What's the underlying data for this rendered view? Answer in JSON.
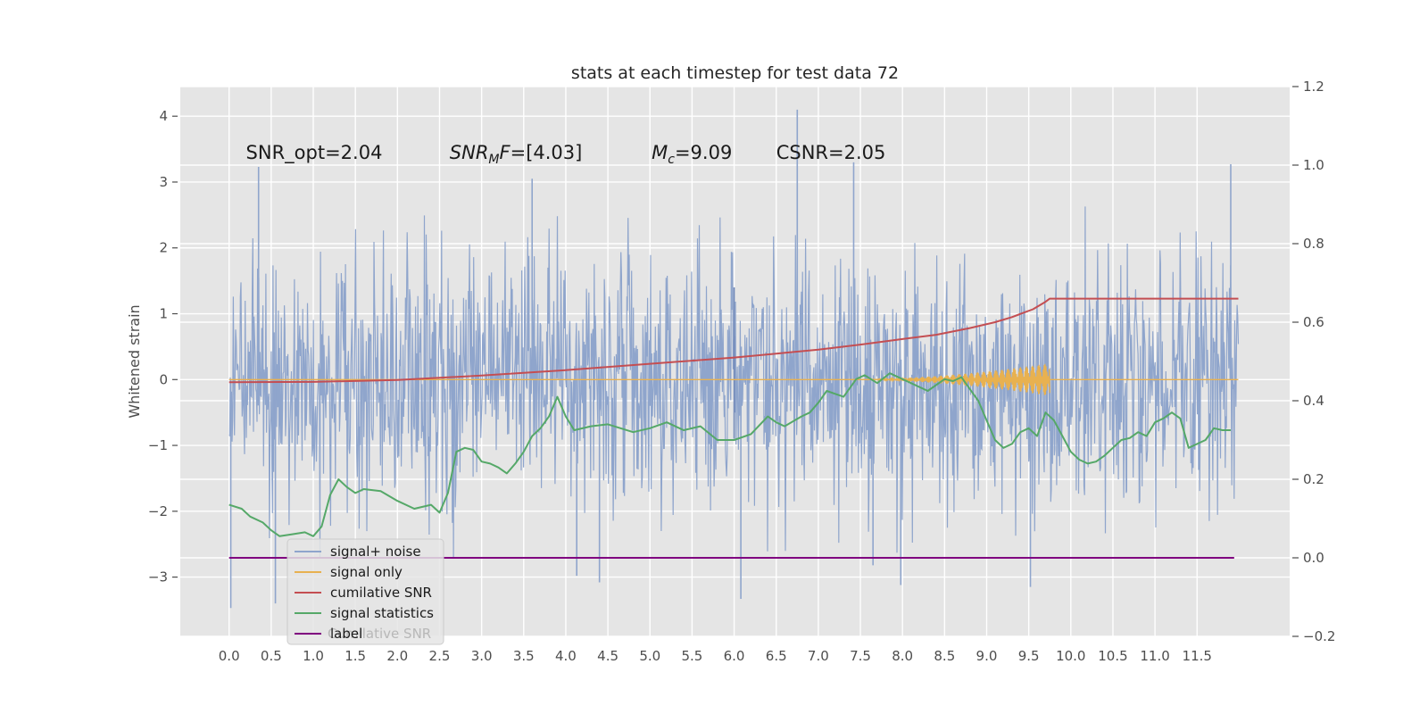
{
  "chart_data": {
    "type": "line",
    "title": "stats at each timestep for test data 72",
    "ylabel": "Whitened strain",
    "xlabel": "",
    "xlim": [
      -0.58,
      12.6
    ],
    "ylim": [
      -3.9,
      4.45
    ],
    "y2lim": [
      -0.2,
      1.2
    ],
    "x_ticks": [
      "0.0",
      "0.5",
      "1.0",
      "1.5",
      "2.0",
      "2.5",
      "3.0",
      "3.5",
      "4.0",
      "4.5",
      "5.0",
      "5.5",
      "6.0",
      "6.5",
      "7.0",
      "7.5",
      "8.0",
      "8.5",
      "9.0",
      "9.5",
      "10.0",
      "10.5",
      "11.0",
      "11.5"
    ],
    "y_ticks": [
      "−3",
      "−2",
      "−1",
      "0",
      "1",
      "2",
      "3",
      "4"
    ],
    "y2_ticks": [
      "−0.2",
      "0.0",
      "0.2",
      "0.4",
      "0.6",
      "0.8",
      "1.0",
      "1.2"
    ],
    "grid": true,
    "legend_position": "lower-left",
    "annotations": [
      {
        "text": "SNR_opt=2.04",
        "x": 0.2,
        "y": 3.35
      },
      {
        "base": "SNR",
        "sub": "M",
        "tail": "F=[4.03]",
        "x": 2.62,
        "y": 3.35
      },
      {
        "base": "M",
        "sub": "c",
        "tail": "=9.09",
        "x": 5.02,
        "y": 3.35
      },
      {
        "text": "CSNR=2.05",
        "x": 6.5,
        "y": 3.35
      }
    ],
    "series": [
      {
        "name": "signal+ noise",
        "color": "#8fa5cc",
        "axis": "left",
        "style": "noise",
        "x_range": [
          0.0,
          11.99
        ],
        "amplitude_envelope": [
          1.5,
          2.8
        ],
        "extremes": [
          {
            "x": 0.02,
            "y": -3.47
          },
          {
            "x": 0.35,
            "y": 3.23
          },
          {
            "x": 0.55,
            "y": -3.4
          },
          {
            "x": 3.6,
            "y": 3.05
          },
          {
            "x": 4.13,
            "y": -2.98
          },
          {
            "x": 4.4,
            "y": -3.08
          },
          {
            "x": 6.08,
            "y": -3.33
          },
          {
            "x": 6.75,
            "y": 4.1
          },
          {
            "x": 7.42,
            "y": 3.3
          },
          {
            "x": 7.65,
            "y": -2.82
          },
          {
            "x": 7.98,
            "y": -3.12
          },
          {
            "x": 9.52,
            "y": -3.15
          },
          {
            "x": 11.9,
            "y": 3.27
          }
        ]
      },
      {
        "name": "signal only",
        "color": "#e8b150",
        "axis": "left",
        "style": "chirp",
        "x_range": [
          0.0,
          11.99
        ],
        "chirp_start": 7.4,
        "chirp_end": 9.75,
        "peak_amplitude": 0.25
      },
      {
        "name": "cumilative SNR",
        "color": "#c44e52",
        "axis": "right",
        "x": [
          0.0,
          1.0,
          2.0,
          3.0,
          4.0,
          5.0,
          6.0,
          6.5,
          7.0,
          7.5,
          8.0,
          8.4,
          8.8,
          9.1,
          9.3,
          9.55,
          9.7,
          9.75,
          11.99
        ],
        "values": [
          0.447,
          0.448,
          0.453,
          0.464,
          0.478,
          0.494,
          0.51,
          0.52,
          0.53,
          0.543,
          0.557,
          0.568,
          0.585,
          0.6,
          0.613,
          0.633,
          0.652,
          0.66,
          0.66
        ]
      },
      {
        "name": "signal statistics",
        "color": "#55a868",
        "axis": "right",
        "x": [
          0.0,
          0.15,
          0.25,
          0.4,
          0.5,
          0.6,
          0.75,
          0.9,
          1.0,
          1.1,
          1.2,
          1.3,
          1.4,
          1.5,
          1.6,
          1.8,
          2.0,
          2.2,
          2.4,
          2.5,
          2.6,
          2.7,
          2.8,
          2.9,
          3.0,
          3.1,
          3.2,
          3.3,
          3.4,
          3.5,
          3.6,
          3.7,
          3.8,
          3.9,
          4.0,
          4.1,
          4.3,
          4.5,
          4.8,
          5.0,
          5.2,
          5.4,
          5.6,
          5.8,
          6.0,
          6.2,
          6.4,
          6.5,
          6.6,
          6.8,
          6.9,
          7.0,
          7.1,
          7.3,
          7.45,
          7.55,
          7.7,
          7.85,
          8.0,
          8.1,
          8.3,
          8.5,
          8.6,
          8.7,
          8.8,
          8.9,
          9.0,
          9.1,
          9.2,
          9.3,
          9.4,
          9.5,
          9.6,
          9.7,
          9.8,
          9.9,
          10.0,
          10.1,
          10.2,
          10.3,
          10.4,
          10.5,
          10.6,
          10.7,
          10.8,
          10.9,
          11.0,
          11.1,
          11.2,
          11.3,
          11.4,
          11.5,
          11.6,
          11.7,
          11.8,
          11.9
        ],
        "values": [
          0.135,
          0.125,
          0.105,
          0.09,
          0.07,
          0.055,
          0.06,
          0.065,
          0.055,
          0.08,
          0.16,
          0.2,
          0.18,
          0.165,
          0.175,
          0.17,
          0.145,
          0.125,
          0.135,
          0.115,
          0.165,
          0.27,
          0.28,
          0.275,
          0.245,
          0.24,
          0.23,
          0.215,
          0.24,
          0.27,
          0.31,
          0.33,
          0.36,
          0.41,
          0.36,
          0.325,
          0.335,
          0.34,
          0.32,
          0.33,
          0.345,
          0.325,
          0.335,
          0.3,
          0.3,
          0.315,
          0.36,
          0.345,
          0.335,
          0.36,
          0.37,
          0.395,
          0.425,
          0.41,
          0.455,
          0.465,
          0.445,
          0.47,
          0.455,
          0.445,
          0.425,
          0.455,
          0.45,
          0.46,
          0.43,
          0.4,
          0.35,
          0.3,
          0.28,
          0.29,
          0.32,
          0.33,
          0.31,
          0.37,
          0.35,
          0.31,
          0.27,
          0.25,
          0.24,
          0.245,
          0.26,
          0.28,
          0.3,
          0.305,
          0.32,
          0.31,
          0.345,
          0.355,
          0.37,
          0.355,
          0.28,
          0.29,
          0.3,
          0.33,
          0.325,
          0.325
        ]
      },
      {
        "name": "label",
        "color": "#800080",
        "axis": "right",
        "x": [
          0.0,
          11.94
        ],
        "values": [
          0.0,
          0.0
        ]
      }
    ],
    "legend_overlap_text": "Cumilative SNR"
  }
}
